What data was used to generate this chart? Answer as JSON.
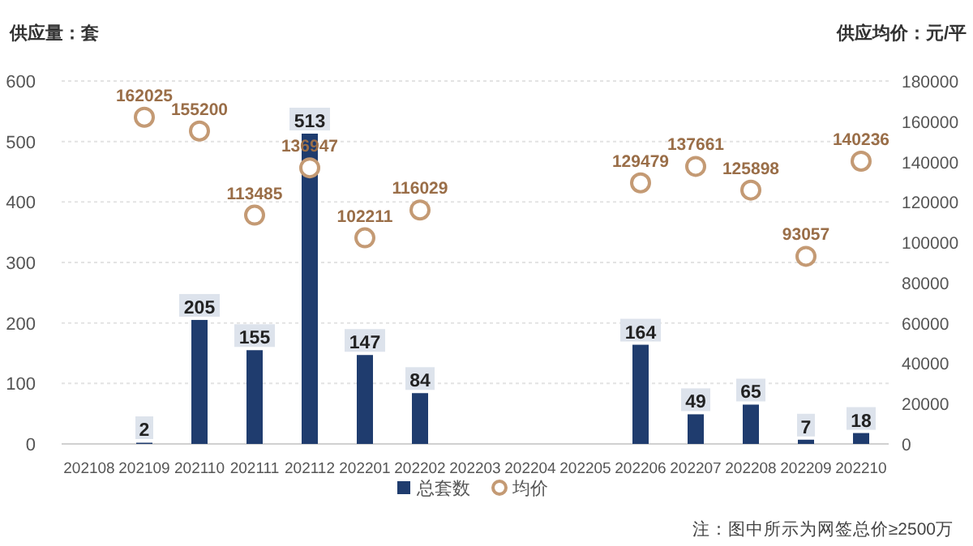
{
  "chart_data": {
    "type": "bar",
    "ylabel": "供应量：套",
    "y2label": "供应均价：元/平",
    "categories": [
      "202108",
      "202109",
      "202110",
      "202111",
      "202112",
      "202201",
      "202202",
      "202203",
      "202204",
      "202205",
      "202206",
      "202207",
      "202208",
      "202209",
      "202210"
    ],
    "series": [
      {
        "name": "总套数",
        "color": "#1f3c6e",
        "values": [
          null,
          2,
          205,
          155,
          513,
          147,
          84,
          null,
          null,
          null,
          164,
          49,
          65,
          7,
          18
        ]
      },
      {
        "name": "均价",
        "type": "scatter",
        "axis": "y2",
        "marker": "circle",
        "color": "#c49a74",
        "values": [
          null,
          162025,
          155200,
          113485,
          136947,
          102211,
          116029,
          null,
          null,
          null,
          129479,
          137661,
          125898,
          93057,
          140236
        ]
      }
    ],
    "ylim": [
      0,
      600
    ],
    "yticks": [
      0,
      100,
      200,
      300,
      400,
      500,
      600
    ],
    "y2lim": [
      0,
      180000
    ],
    "y2ticks": [
      0,
      20000,
      40000,
      60000,
      80000,
      100000,
      120000,
      140000,
      160000,
      180000
    ],
    "grid": "y",
    "legend": "bottom",
    "data_labels": true,
    "annotations": [
      "注：图中所示为网签总价≥2500万"
    ]
  }
}
